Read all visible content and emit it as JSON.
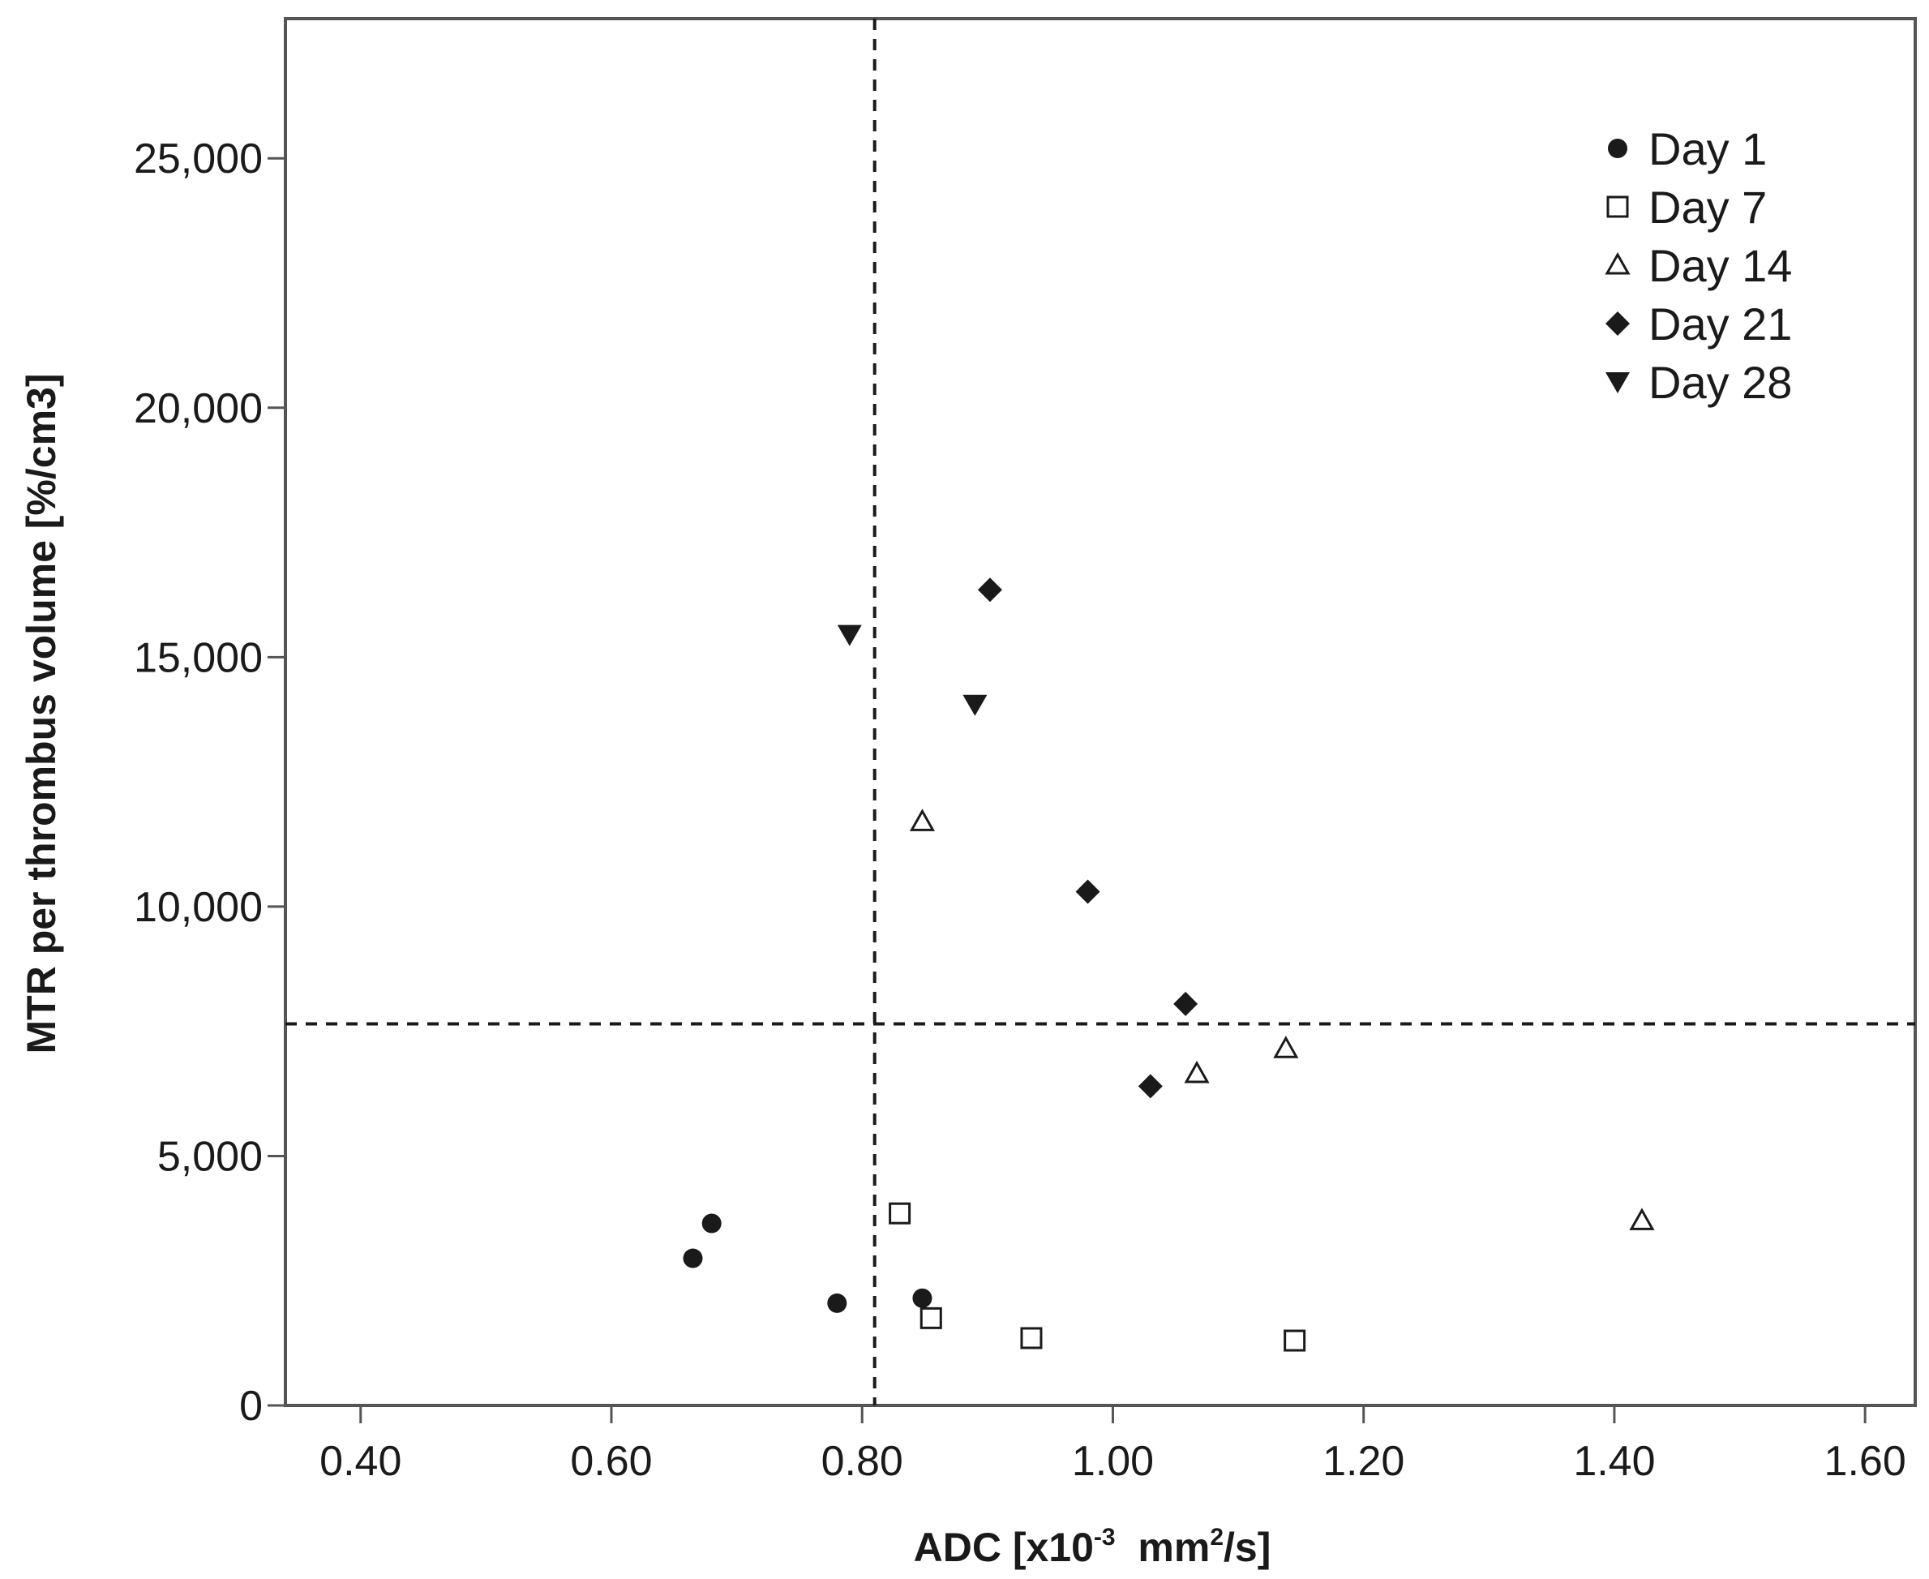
{
  "chart_data": {
    "type": "scatter",
    "xlabel": {
      "prefix": "ADC [x10",
      "exp": "-3",
      "mid": "  mm",
      "exp2": "2",
      "suffix": "/s]"
    },
    "ylabel": "MTR per thrombus volume [%/cm3]",
    "xlim": [
      0.34,
      1.64
    ],
    "ylim": [
      0,
      27800
    ],
    "x_ticks": [
      {
        "value": 0.4,
        "label": "0.40"
      },
      {
        "value": 0.6,
        "label": "0.60"
      },
      {
        "value": 0.8,
        "label": "0.80"
      },
      {
        "value": 1.0,
        "label": "1.00"
      },
      {
        "value": 1.2,
        "label": "1.20"
      },
      {
        "value": 1.4,
        "label": "1.40"
      },
      {
        "value": 1.6,
        "label": "1.60"
      }
    ],
    "y_ticks": [
      {
        "value": 0,
        "label": "0"
      },
      {
        "value": 5000,
        "label": "5,000"
      },
      {
        "value": 10000,
        "label": "10,000"
      },
      {
        "value": 15000,
        "label": "15,000"
      },
      {
        "value": 20000,
        "label": "20,000"
      },
      {
        "value": 25000,
        "label": "25,000"
      }
    ],
    "reference_lines": [
      {
        "axis": "x",
        "value": 0.81,
        "style": "dashed"
      },
      {
        "axis": "y",
        "value": 7650,
        "style": "dashed"
      }
    ],
    "legend_position": "top-right",
    "series": [
      {
        "name": "Day 1",
        "marker": "circle-filled",
        "points": [
          [
            0.665,
            2950
          ],
          [
            0.68,
            3650
          ],
          [
            0.78,
            2050
          ],
          [
            0.848,
            2150
          ]
        ]
      },
      {
        "name": "Day 7",
        "marker": "square-open",
        "points": [
          [
            0.83,
            3850
          ],
          [
            0.855,
            1750
          ],
          [
            0.935,
            1350
          ],
          [
            1.145,
            1300
          ]
        ]
      },
      {
        "name": "Day 14",
        "marker": "triangle-up-open",
        "points": [
          [
            0.848,
            11700
          ],
          [
            1.067,
            6650
          ],
          [
            1.138,
            7150
          ],
          [
            1.422,
            3700
          ]
        ]
      },
      {
        "name": "Day 21",
        "marker": "diamond-filled",
        "points": [
          [
            0.902,
            16350
          ],
          [
            0.98,
            10300
          ],
          [
            1.058,
            8050
          ],
          [
            1.03,
            6400
          ]
        ]
      },
      {
        "name": "Day 28",
        "marker": "triangle-down-filled",
        "points": [
          [
            0.79,
            15450
          ],
          [
            0.89,
            14050
          ]
        ]
      }
    ],
    "colors": {
      "ink": "#1a1a1a",
      "frame": "#555555",
      "background": "#ffffff"
    }
  }
}
